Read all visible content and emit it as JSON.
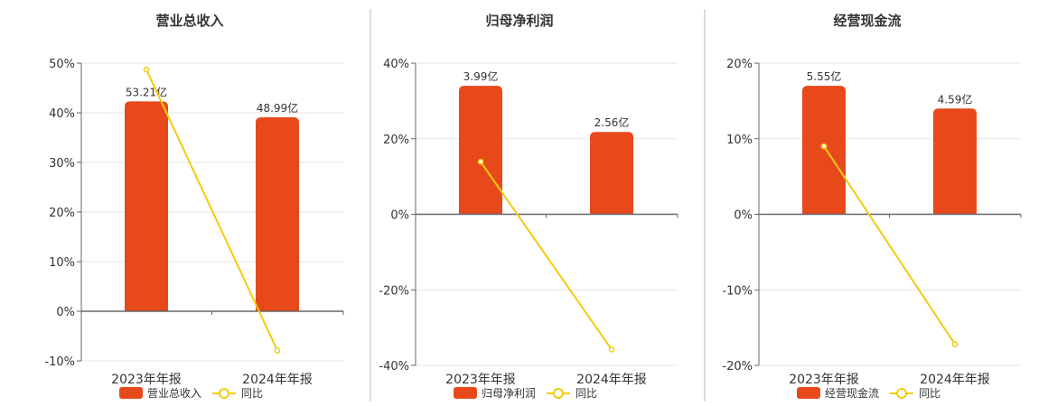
{
  "colors": {
    "bar": "#E8491B",
    "line": "#F2CC0C",
    "axis": "#666666",
    "grid": "#E6E6E6",
    "text": "#333333",
    "divider": "#BBBBBB"
  },
  "legend": {
    "line_label": "同比"
  },
  "chart_data": [
    {
      "type": "bar",
      "title": "营业总收入",
      "categories": [
        "2023年年报",
        "2024年年报"
      ],
      "series": [
        {
          "name": "营业总收入",
          "values": [
            42.3,
            39.1
          ],
          "data_labels": [
            "53.21亿",
            "48.99亿"
          ]
        },
        {
          "name": "同比",
          "type": "line",
          "values": [
            48.7,
            -7.9
          ]
        }
      ],
      "yticks": [
        "50%",
        "40%",
        "30%",
        "20%",
        "10%",
        "0%",
        "-10%"
      ],
      "ylim": [
        -10,
        50
      ],
      "grid": true,
      "legend_position": "bottom"
    },
    {
      "type": "bar",
      "title": "归母净利润",
      "categories": [
        "2023年年报",
        "2024年年报"
      ],
      "series": [
        {
          "name": "归母净利润",
          "values": [
            34.0,
            21.8
          ],
          "data_labels": [
            "3.99亿",
            "2.56亿"
          ]
        },
        {
          "name": "同比",
          "type": "line",
          "values": [
            13.9,
            -35.8
          ]
        }
      ],
      "yticks": [
        "40%",
        "20%",
        "0%",
        "-20%",
        "-40%"
      ],
      "ylim": [
        -40,
        40
      ],
      "grid": true,
      "legend_position": "bottom"
    },
    {
      "type": "bar",
      "title": "经营现金流",
      "categories": [
        "2023年年报",
        "2024年年报"
      ],
      "series": [
        {
          "name": "经营现金流",
          "values": [
            17.0,
            14.0
          ],
          "data_labels": [
            "5.55亿",
            "4.59亿"
          ]
        },
        {
          "name": "同比",
          "type": "line",
          "values": [
            9.0,
            -17.2
          ]
        }
      ],
      "yticks": [
        "20%",
        "10%",
        "0%",
        "-10%",
        "-20%"
      ],
      "ylim": [
        -20,
        20
      ],
      "grid": true,
      "legend_position": "bottom"
    }
  ]
}
